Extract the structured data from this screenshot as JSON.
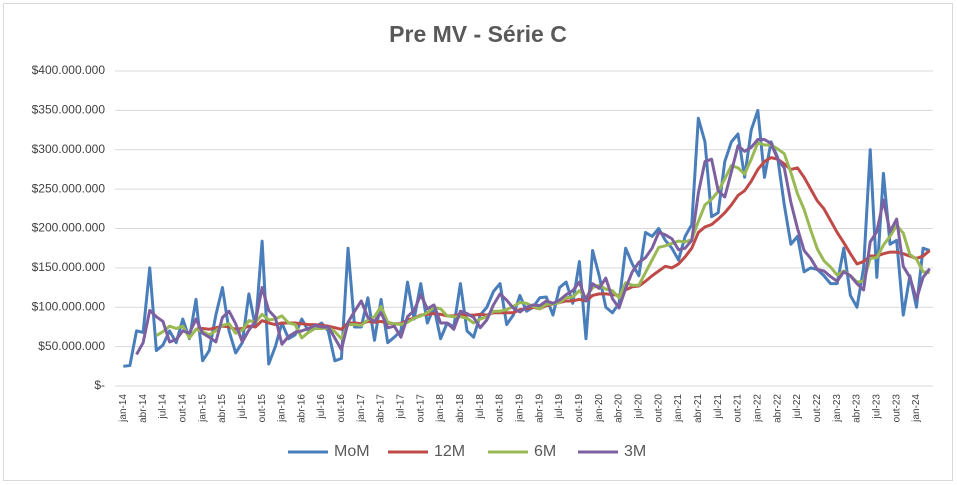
{
  "chart_data": {
    "type": "line",
    "title": "Pre MV - Série C",
    "categories": [
      "jan-14",
      null,
      null,
      "abr-14",
      null,
      null,
      "jul-14",
      null,
      null,
      "out-14",
      null,
      null,
      "jan-15",
      null,
      null,
      "abr-15",
      null,
      null,
      "jul-15",
      null,
      null,
      "out-15",
      null,
      null,
      "jan-16",
      null,
      null,
      "abr-16",
      null,
      null,
      "jul-16",
      null,
      null,
      "out-16",
      null,
      null,
      "jan-17",
      null,
      null,
      "abr-17",
      null,
      null,
      "jul-17",
      null,
      null,
      "out-17",
      null,
      null,
      "jan-18",
      null,
      null,
      "abr-18",
      null,
      null,
      "jul-18",
      null,
      null,
      "out-18",
      null,
      null,
      "jan-19",
      null,
      null,
      "abr-19",
      null,
      null,
      "jul-19",
      null,
      null,
      "out-19",
      null,
      null,
      "jan-20",
      null,
      null,
      "abr-20",
      null,
      null,
      "jul-20",
      null,
      null,
      "out-20",
      null,
      null,
      "jan-21",
      null,
      null,
      "abr-21",
      null,
      null,
      "jul-21",
      null,
      null,
      "out-21",
      null,
      null,
      "jan-22",
      null,
      null,
      "abr-22",
      null,
      null,
      "jul-22",
      null,
      null,
      "out-22",
      null,
      null,
      "jan-23",
      null,
      null,
      "abr-23",
      null,
      null,
      "jul-23",
      null,
      null,
      "out-23",
      null,
      null,
      "jan-24",
      null,
      null
    ],
    "series": [
      {
        "name": "MoM",
        "color": "#4a7ebb",
        "values": [
          25000000,
          26000000,
          70000000,
          68000000,
          150000000,
          45000000,
          52000000,
          70000000,
          55000000,
          85000000,
          60000000,
          110000000,
          32000000,
          45000000,
          90000000,
          125000000,
          70000000,
          42000000,
          55000000,
          117000000,
          75000000,
          184000000,
          28000000,
          50000000,
          80000000,
          60000000,
          65000000,
          85000000,
          70000000,
          75000000,
          80000000,
          70000000,
          32000000,
          35000000,
          175000000,
          75000000,
          75000000,
          112000000,
          58000000,
          110000000,
          55000000,
          62000000,
          70000000,
          132000000,
          85000000,
          130000000,
          80000000,
          100000000,
          60000000,
          80000000,
          75000000,
          130000000,
          70000000,
          62000000,
          90000000,
          100000000,
          120000000,
          130000000,
          78000000,
          90000000,
          115000000,
          95000000,
          100000000,
          112000000,
          113000000,
          90000000,
          125000000,
          132000000,
          105000000,
          158000000,
          60000000,
          172000000,
          140000000,
          100000000,
          93000000,
          105000000,
          175000000,
          155000000,
          140000000,
          195000000,
          190000000,
          200000000,
          185000000,
          175000000,
          160000000,
          190000000,
          205000000,
          340000000,
          310000000,
          215000000,
          220000000,
          285000000,
          310000000,
          320000000,
          265000000,
          325000000,
          350000000,
          265000000,
          310000000,
          290000000,
          230000000,
          180000000,
          190000000,
          145000000,
          150000000,
          148000000,
          140000000,
          130000000,
          130000000,
          175000000,
          115000000,
          100000000,
          150000000,
          300000000,
          138000000,
          270000000,
          180000000,
          185000000,
          90000000,
          140000000,
          100000000,
          175000000,
          172000000
        ]
      },
      {
        "name": "12M",
        "color": "#be4b48",
        "values": [
          null,
          null,
          null,
          null,
          null,
          null,
          null,
          null,
          null,
          null,
          null,
          72000000,
          73000000,
          72000000,
          74000000,
          76000000,
          75000000,
          72000000,
          73000000,
          76000000,
          75000000,
          83000000,
          80000000,
          78000000,
          80000000,
          80000000,
          80000000,
          79000000,
          78000000,
          78000000,
          77000000,
          76000000,
          74000000,
          72000000,
          80000000,
          80000000,
          79000000,
          82000000,
          81000000,
          82000000,
          80000000,
          79000000,
          79000000,
          84000000,
          86000000,
          90000000,
          91000000,
          92000000,
          91000000,
          89000000,
          89000000,
          91000000,
          90000000,
          90000000,
          91000000,
          90000000,
          93000000,
          93000000,
          93000000,
          93000000,
          97000000,
          98000000,
          100000000,
          98000000,
          102000000,
          104000000,
          106000000,
          108000000,
          108000000,
          110000000,
          108000000,
          115000000,
          117000000,
          117000000,
          116000000,
          115000000,
          122000000,
          126000000,
          127000000,
          133000000,
          140000000,
          146000000,
          152000000,
          150000000,
          155000000,
          164000000,
          175000000,
          195000000,
          202000000,
          205000000,
          212000000,
          220000000,
          230000000,
          242000000,
          248000000,
          260000000,
          275000000,
          285000000,
          290000000,
          288000000,
          282000000,
          275000000,
          277000000,
          265000000,
          250000000,
          235000000,
          225000000,
          210000000,
          195000000,
          182000000,
          168000000,
          155000000,
          158000000,
          165000000,
          165000000,
          168000000,
          170000000,
          170000000,
          168000000,
          165000000,
          162000000,
          165000000,
          172000000
        ]
      },
      {
        "name": "6M",
        "color": "#98b954",
        "values": [
          null,
          null,
          null,
          null,
          null,
          64000000,
          69000000,
          76000000,
          73000000,
          76000000,
          61000000,
          72000000,
          69000000,
          65000000,
          70000000,
          77000000,
          79000000,
          67000000,
          71000000,
          83000000,
          81000000,
          91000000,
          84000000,
          85000000,
          89000000,
          80000000,
          78000000,
          61000000,
          68000000,
          73000000,
          73000000,
          74000000,
          69000000,
          60000000,
          78000000,
          78000000,
          77000000,
          84000000,
          88000000,
          101000000,
          81000000,
          79000000,
          78000000,
          81000000,
          86000000,
          89000000,
          93000000,
          100000000,
          98000000,
          89000000,
          88000000,
          88000000,
          86000000,
          80000000,
          85000000,
          88000000,
          95000000,
          95000000,
          97000000,
          101000000,
          106000000,
          105000000,
          101000000,
          98000000,
          104000000,
          104000000,
          106000000,
          112000000,
          113000000,
          121000000,
          112000000,
          125000000,
          128000000,
          123000000,
          121000000,
          112000000,
          131000000,
          128000000,
          128000000,
          144000000,
          160000000,
          176000000,
          178000000,
          181000000,
          184000000,
          183000000,
          186000000,
          209000000,
          230000000,
          237000000,
          247000000,
          263000000,
          280000000,
          277000000,
          269000000,
          288000000,
          309000000,
          306000000,
          306000000,
          301000000,
          295000000,
          271000000,
          244000000,
          224000000,
          198000000,
          174000000,
          159000000,
          151000000,
          141000000,
          146000000,
          140000000,
          132000000,
          133000000,
          162000000,
          163000000,
          179000000,
          190000000,
          204000000,
          194000000,
          167000000,
          161000000,
          145000000,
          144000000
        ]
      },
      {
        "name": "3M",
        "color": "#7d60a0",
        "values": [
          null,
          null,
          40000000,
          55000000,
          96000000,
          88000000,
          82000000,
          56000000,
          59000000,
          70000000,
          67000000,
          85000000,
          67000000,
          62000000,
          56000000,
          87000000,
          95000000,
          79000000,
          56000000,
          71000000,
          82000000,
          125000000,
          96000000,
          87000000,
          53000000,
          63000000,
          68000000,
          70000000,
          73000000,
          77000000,
          75000000,
          75000000,
          61000000,
          46000000,
          81000000,
          95000000,
          108000000,
          87000000,
          82000000,
          93000000,
          74000000,
          76000000,
          62000000,
          88000000,
          96000000,
          116000000,
          98000000,
          103000000,
          80000000,
          80000000,
          72000000,
          95000000,
          92000000,
          87000000,
          74000000,
          84000000,
          103000000,
          117000000,
          109000000,
          99000000,
          94000000,
          100000000,
          103000000,
          102000000,
          108000000,
          105000000,
          109000000,
          116000000,
          121000000,
          132000000,
          108000000,
          130000000,
          124000000,
          137000000,
          111000000,
          99000000,
          124000000,
          145000000,
          157000000,
          163000000,
          175000000,
          195000000,
          192000000,
          187000000,
          173000000,
          175000000,
          185000000,
          245000000,
          285000000,
          288000000,
          248000000,
          240000000,
          272000000,
          305000000,
          298000000,
          303000000,
          313000000,
          313000000,
          308000000,
          288000000,
          277000000,
          233000000,
          200000000,
          172000000,
          162000000,
          148000000,
          146000000,
          139000000,
          133000000,
          145000000,
          140000000,
          130000000,
          122000000,
          183000000,
          196000000,
          236000000,
          196000000,
          212000000,
          152000000,
          138000000,
          110000000,
          138000000,
          149000000
        ]
      }
    ],
    "ylim": [
      0,
      400000000
    ],
    "yticks": [
      {
        "value": 0,
        "label": "$-"
      },
      {
        "value": 50000000,
        "label": "$50.000.000"
      },
      {
        "value": 100000000,
        "label": "$100.000.000"
      },
      {
        "value": 150000000,
        "label": "$150.000.000"
      },
      {
        "value": 200000000,
        "label": "$200.000.000"
      },
      {
        "value": 250000000,
        "label": "$250.000.000"
      },
      {
        "value": 300000000,
        "label": "$300.000.000"
      },
      {
        "value": 350000000,
        "label": "$350.000.000"
      },
      {
        "value": 400000000,
        "label": "$400.000.000"
      }
    ],
    "grid": true,
    "legend": "bottom"
  }
}
